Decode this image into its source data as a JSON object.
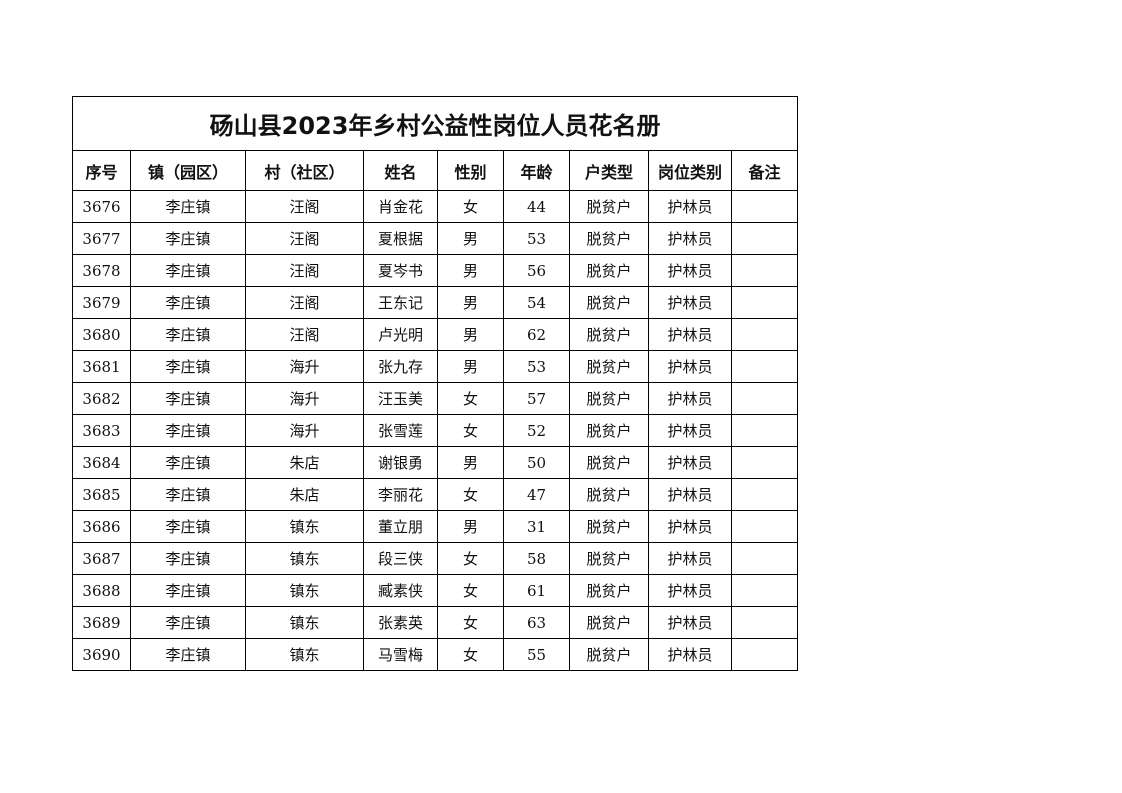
{
  "title": "砀山县2023年乡村公益性岗位人员花名册",
  "headers": [
    "序号",
    "镇（园区）",
    "村（社区）",
    "姓名",
    "性别",
    "年龄",
    "户类型",
    "岗位类别",
    "备注"
  ],
  "rows": [
    [
      "3676",
      "李庄镇",
      "汪阁",
      "肖金花",
      "女",
      "44",
      "脱贫户",
      "护林员",
      ""
    ],
    [
      "3677",
      "李庄镇",
      "汪阁",
      "夏根据",
      "男",
      "53",
      "脱贫户",
      "护林员",
      ""
    ],
    [
      "3678",
      "李庄镇",
      "汪阁",
      "夏岑书",
      "男",
      "56",
      "脱贫户",
      "护林员",
      ""
    ],
    [
      "3679",
      "李庄镇",
      "汪阁",
      "王东记",
      "男",
      "54",
      "脱贫户",
      "护林员",
      ""
    ],
    [
      "3680",
      "李庄镇",
      "汪阁",
      "卢光明",
      "男",
      "62",
      "脱贫户",
      "护林员",
      ""
    ],
    [
      "3681",
      "李庄镇",
      "海升",
      "张九存",
      "男",
      "53",
      "脱贫户",
      "护林员",
      ""
    ],
    [
      "3682",
      "李庄镇",
      "海升",
      "汪玉美",
      "女",
      "57",
      "脱贫户",
      "护林员",
      ""
    ],
    [
      "3683",
      "李庄镇",
      "海升",
      "张雪莲",
      "女",
      "52",
      "脱贫户",
      "护林员",
      ""
    ],
    [
      "3684",
      "李庄镇",
      "朱店",
      "谢银勇",
      "男",
      "50",
      "脱贫户",
      "护林员",
      ""
    ],
    [
      "3685",
      "李庄镇",
      "朱店",
      "李丽花",
      "女",
      "47",
      "脱贫户",
      "护林员",
      ""
    ],
    [
      "3686",
      "李庄镇",
      "镇东",
      "董立朋",
      "男",
      "31",
      "脱贫户",
      "护林员",
      ""
    ],
    [
      "3687",
      "李庄镇",
      "镇东",
      "段三侠",
      "女",
      "58",
      "脱贫户",
      "护林员",
      ""
    ],
    [
      "3688",
      "李庄镇",
      "镇东",
      "臧素侠",
      "女",
      "61",
      "脱贫户",
      "护林员",
      ""
    ],
    [
      "3689",
      "李庄镇",
      "镇东",
      "张素英",
      "女",
      "63",
      "脱贫户",
      "护林员",
      ""
    ],
    [
      "3690",
      "李庄镇",
      "镇东",
      "马雪梅",
      "女",
      "55",
      "脱贫户",
      "护林员",
      ""
    ]
  ]
}
